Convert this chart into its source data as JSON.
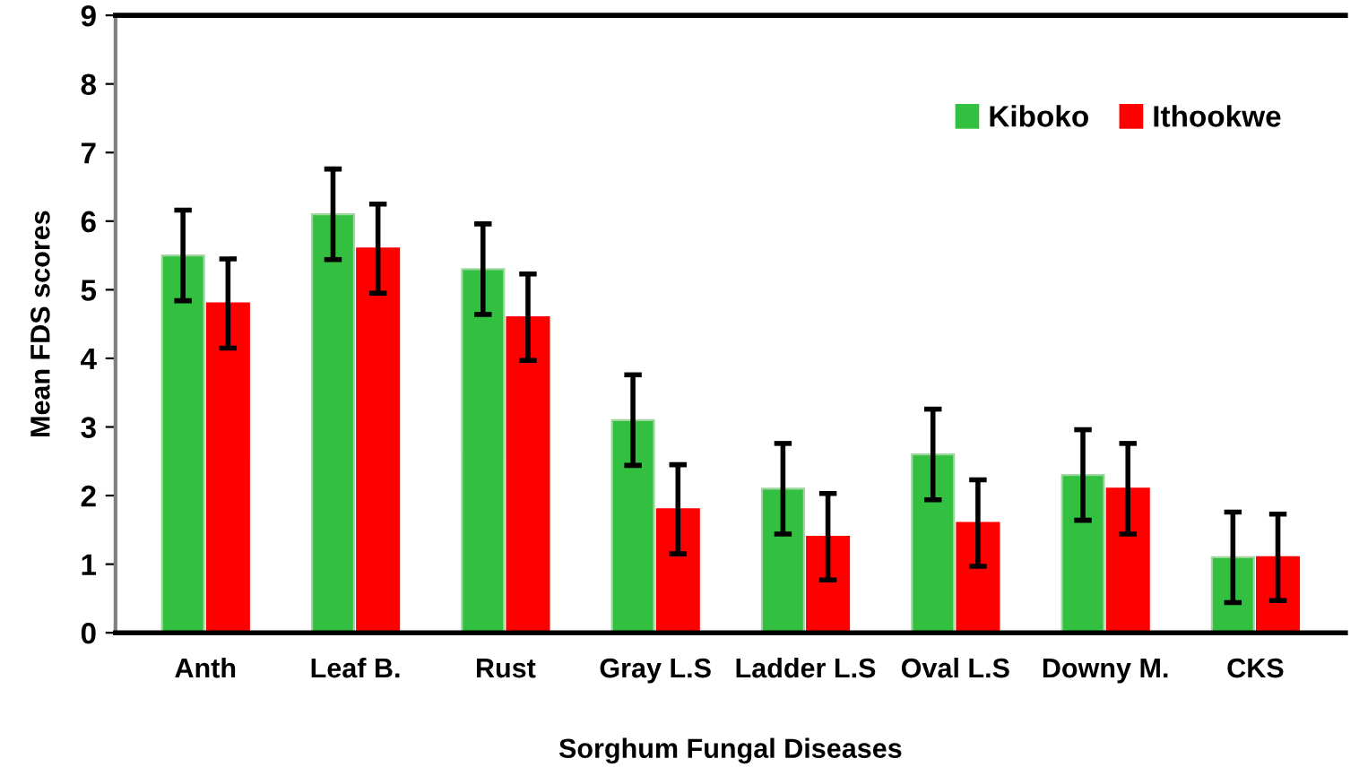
{
  "chart_data": {
    "type": "bar",
    "xlabel": "Sorghum Fungal Diseases",
    "ylabel": "Mean FDS scores",
    "categories": [
      "Anth",
      "Leaf B.",
      "Rust",
      "Gray L.S",
      "Ladder L.S",
      "Oval L.S",
      "Downy M.",
      "CKS"
    ],
    "series": [
      {
        "name": "Kiboko",
        "color": "#33bf3f",
        "values": [
          5.5,
          6.1,
          5.3,
          3.1,
          2.1,
          2.6,
          2.3,
          1.1
        ],
        "errors": [
          0.66,
          0.66,
          0.66,
          0.66,
          0.66,
          0.66,
          0.66,
          0.66
        ]
      },
      {
        "name": "Ithookwe",
        "color": "#ff0000",
        "values": [
          4.8,
          5.6,
          4.6,
          1.8,
          1.4,
          1.6,
          2.1,
          1.1
        ],
        "errors": [
          0.65,
          0.65,
          0.63,
          0.65,
          0.63,
          0.63,
          0.66,
          0.63
        ]
      }
    ],
    "ylim": [
      0,
      9
    ],
    "yticks": [
      0,
      1,
      2,
      3,
      4,
      5,
      6,
      7,
      8,
      9
    ],
    "grid": false,
    "legend": "top right"
  }
}
